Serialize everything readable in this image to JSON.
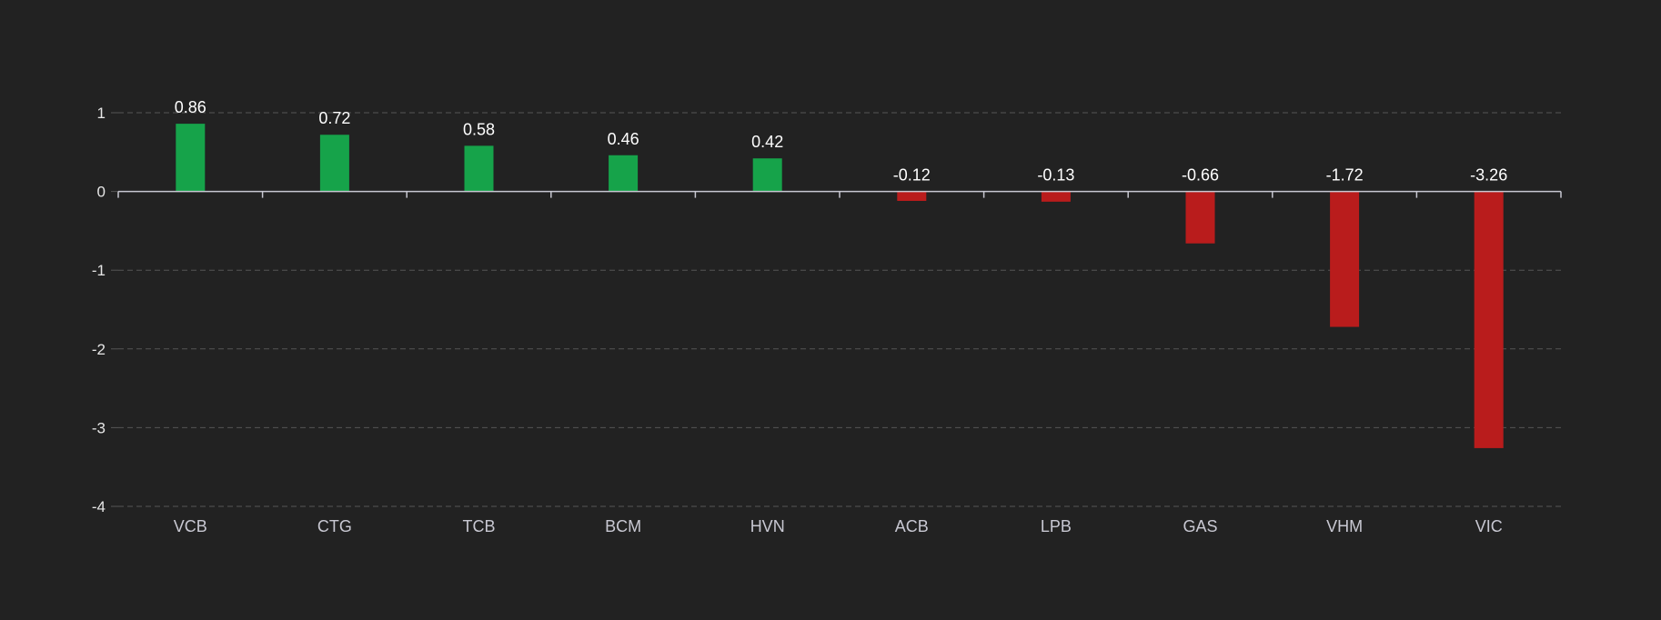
{
  "chart_data": {
    "type": "bar",
    "categories": [
      "VCB",
      "CTG",
      "TCB",
      "BCM",
      "HVN",
      "ACB",
      "LPB",
      "GAS",
      "VHM",
      "VIC"
    ],
    "values": [
      0.86,
      0.72,
      0.58,
      0.46,
      0.42,
      -0.12,
      -0.13,
      -0.66,
      -1.72,
      -3.26
    ],
    "data_labels": [
      "0.86",
      "0.72",
      "0.58",
      "0.46",
      "0.42",
      "-0.12",
      "-0.13",
      "-0.66",
      "-1.72",
      "-3.26"
    ],
    "y_ticks": [
      1,
      0,
      -1,
      -2,
      -3,
      -4
    ],
    "y_tick_labels": [
      "1",
      "0",
      "-1",
      "-2",
      "-3",
      "-4"
    ],
    "ylim": [
      -4,
      1
    ],
    "grid": "horizontal-dashed",
    "legend": "none",
    "colors": {
      "positive": "#16a34a",
      "negative": "#b91c1c",
      "background": "#222222",
      "grid": "#555555",
      "axis": "#c8c8d2"
    }
  }
}
